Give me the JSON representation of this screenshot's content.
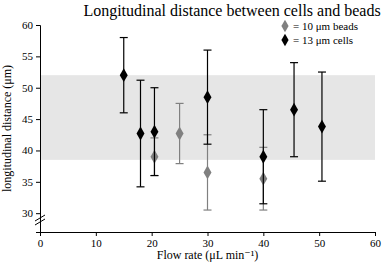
{
  "chart_data": {
    "type": "scatter",
    "title": "Longitudinal distance between cells and beads",
    "x_label": "Flow rate (μL min⁻¹)",
    "y_label": "longitudinal distance (μm)",
    "xlim": [
      0,
      60
    ],
    "xticks": [
      0,
      10,
      20,
      30,
      40,
      50,
      60
    ],
    "ylim": [
      27,
      60
    ],
    "yticks": [
      30,
      35,
      40,
      45,
      50,
      55,
      60
    ],
    "shaded_range": [
      38.5,
      52
    ],
    "legend": "top-right",
    "series": [
      {
        "name": "= 10 μm beads",
        "color": "#808080",
        "marker": "diamond",
        "x": [
          20.5,
          25,
          30,
          40
        ],
        "values": [
          39,
          42.7,
          36.5,
          35.5
        ],
        "errors": [
          3,
          4.8,
          6,
          5
        ]
      },
      {
        "name": "= 13 μm cells",
        "color": "#000000",
        "marker": "diamond",
        "x": [
          15,
          18,
          20.5,
          30,
          40,
          45.5,
          50.5
        ],
        "values": [
          52,
          42.7,
          43,
          48.5,
          39,
          46.5,
          43.8
        ],
        "errors": [
          6,
          8.5,
          7,
          7.5,
          7.5,
          7.5,
          8.7
        ]
      }
    ]
  }
}
